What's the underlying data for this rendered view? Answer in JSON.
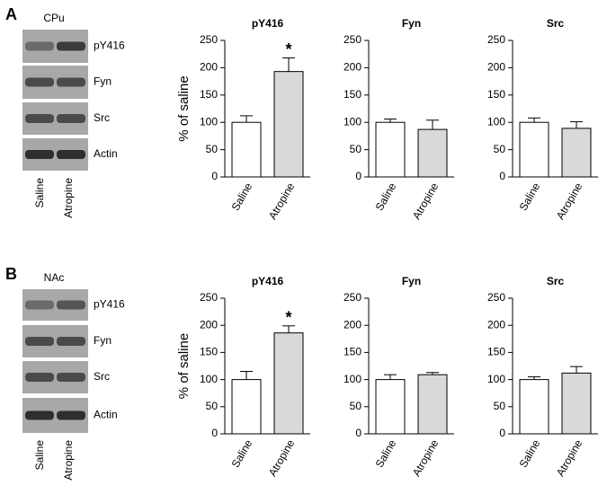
{
  "blots": [
    {
      "label": "A",
      "region": "CPu",
      "rows": [
        "pY416",
        "Fyn",
        "Src",
        "Actin"
      ],
      "lanes": [
        "Saline",
        "Atropine"
      ]
    },
    {
      "label": "B",
      "region": "NAc",
      "rows": [
        "pY416",
        "Fyn",
        "Src",
        "Actin"
      ],
      "lanes": [
        "Saline",
        "Atropine"
      ]
    }
  ],
  "chart_data": [
    {
      "type": "bar",
      "title": "pY416",
      "ylabel": "% of saline",
      "categories": [
        "Saline",
        "Atropine"
      ],
      "values": [
        100,
        193
      ],
      "errors": [
        12,
        25
      ],
      "colors": [
        "#ffffff",
        "#d9d9d9"
      ],
      "ylim": [
        0,
        250
      ],
      "yticks": [
        0,
        50,
        100,
        150,
        200,
        250
      ],
      "annotations": [
        {
          "text": "*",
          "category": "Atropine"
        }
      ]
    },
    {
      "type": "bar",
      "title": "Fyn",
      "categories": [
        "Saline",
        "Atropine"
      ],
      "values": [
        100,
        87
      ],
      "errors": [
        6,
        17
      ],
      "colors": [
        "#ffffff",
        "#d9d9d9"
      ],
      "ylim": [
        0,
        250
      ],
      "yticks": [
        0,
        50,
        100,
        150,
        200,
        250
      ]
    },
    {
      "type": "bar",
      "title": "Src",
      "categories": [
        "Saline",
        "Atropine"
      ],
      "values": [
        100,
        89
      ],
      "errors": [
        8,
        12
      ],
      "colors": [
        "#ffffff",
        "#d9d9d9"
      ],
      "ylim": [
        0,
        250
      ],
      "yticks": [
        0,
        50,
        100,
        150,
        200,
        250
      ]
    },
    {
      "type": "bar",
      "title": "pY416",
      "ylabel": "% of saline",
      "categories": [
        "Saline",
        "Atropine"
      ],
      "values": [
        100,
        186
      ],
      "errors": [
        15,
        13
      ],
      "colors": [
        "#ffffff",
        "#d9d9d9"
      ],
      "ylim": [
        0,
        250
      ],
      "yticks": [
        0,
        50,
        100,
        150,
        200,
        250
      ],
      "annotations": [
        {
          "text": "*",
          "category": "Atropine"
        }
      ]
    },
    {
      "type": "bar",
      "title": "Fyn",
      "categories": [
        "Saline",
        "Atropine"
      ],
      "values": [
        100,
        109
      ],
      "errors": [
        9,
        4
      ],
      "colors": [
        "#ffffff",
        "#d9d9d9"
      ],
      "ylim": [
        0,
        250
      ],
      "yticks": [
        0,
        50,
        100,
        150,
        200,
        250
      ]
    },
    {
      "type": "bar",
      "title": "Src",
      "categories": [
        "Saline",
        "Atropine"
      ],
      "values": [
        100,
        112
      ],
      "errors": [
        5,
        12
      ],
      "colors": [
        "#ffffff",
        "#d9d9d9"
      ],
      "ylim": [
        0,
        250
      ],
      "yticks": [
        0,
        50,
        100,
        150,
        200,
        250
      ]
    }
  ]
}
